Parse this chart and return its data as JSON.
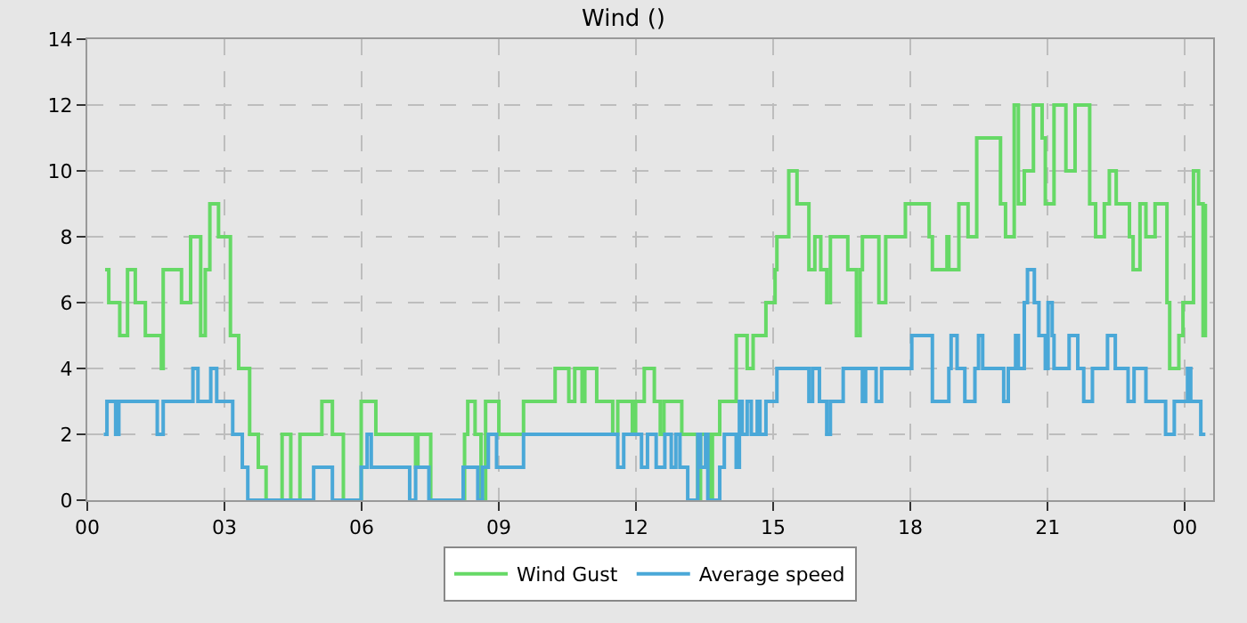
{
  "chart_data": {
    "type": "step",
    "title": "Wind ()",
    "xlim": [
      0,
      24.62
    ],
    "xticks": [
      {
        "value": 0,
        "label": "00"
      },
      {
        "value": 3,
        "label": "03"
      },
      {
        "value": 6,
        "label": "06"
      },
      {
        "value": 9,
        "label": "09"
      },
      {
        "value": 12,
        "label": "12"
      },
      {
        "value": 15,
        "label": "15"
      },
      {
        "value": 18,
        "label": "18"
      },
      {
        "value": 21,
        "label": "21"
      },
      {
        "value": 24,
        "label": "00"
      }
    ],
    "ylim": [
      0,
      14
    ],
    "yticks": [
      0,
      2,
      4,
      6,
      8,
      10,
      12,
      14
    ],
    "grid": true,
    "legend": "bottom",
    "line_style": "solid",
    "marker": "none",
    "series": [
      {
        "name": "Wind Gust",
        "color": "#66d966",
        "x": [
          0.39,
          0.47,
          0.71,
          0.88,
          1.05,
          1.27,
          1.62,
          1.66,
          2.06,
          2.26,
          2.48,
          2.58,
          2.68,
          2.87,
          3.13,
          3.31,
          3.55,
          3.74,
          3.91,
          4.26,
          4.45,
          4.65,
          5.13,
          5.36,
          5.6,
          5.99,
          6.31,
          7.18,
          7.23,
          7.51,
          8.25,
          8.32,
          8.48,
          8.61,
          8.71,
          9.0,
          9.54,
          10.23,
          10.53,
          10.66,
          10.82,
          10.88,
          11.14,
          11.49,
          11.6,
          11.92,
          11.99,
          12.18,
          12.4,
          12.53,
          12.61,
          13.0,
          13.35,
          13.41,
          13.61,
          13.67,
          13.83,
          14.19,
          14.43,
          14.56,
          14.84,
          15.04,
          15.08,
          15.34,
          15.52,
          15.78,
          15.91,
          16.04,
          16.17,
          16.25,
          16.63,
          16.82,
          16.9,
          16.95,
          17.31,
          17.46,
          17.89,
          18.38,
          18.41,
          18.48,
          18.8,
          18.84,
          19.06,
          19.26,
          19.45,
          19.97,
          20.08,
          20.27,
          20.36,
          20.49,
          20.69,
          20.88,
          20.95,
          21.14,
          21.4,
          21.6,
          21.92,
          22.05,
          22.24,
          22.35,
          22.5,
          22.79,
          22.87,
          23.02,
          23.15,
          23.35,
          23.61,
          23.67,
          23.87,
          23.96,
          24.19,
          24.3,
          24.4,
          24.45
        ],
        "values": [
          7,
          6,
          5,
          7,
          6,
          5,
          4,
          7,
          6,
          8,
          5,
          7,
          9,
          8,
          5,
          4,
          2,
          1,
          0,
          2,
          0,
          2,
          3,
          2,
          0,
          3,
          2,
          1,
          2,
          0,
          2,
          3,
          2,
          0,
          3,
          2,
          3,
          4,
          3,
          4,
          3,
          4,
          3,
          2,
          3,
          2,
          3,
          4,
          3,
          2,
          3,
          2,
          0,
          2,
          0,
          2,
          3,
          5,
          4,
          5,
          6,
          7,
          8,
          10,
          9,
          7,
          8,
          7,
          6,
          8,
          7,
          5,
          7,
          8,
          6,
          8,
          9,
          9,
          8,
          7,
          8,
          7,
          9,
          8,
          11,
          9,
          8,
          12,
          9,
          10,
          12,
          11,
          9,
          12,
          10,
          12,
          9,
          8,
          9,
          10,
          9,
          8,
          7,
          9,
          8,
          9,
          6,
          4,
          5,
          6,
          10,
          9,
          5,
          9
        ]
      },
      {
        "name": "Average speed",
        "color": "#4aa8d8",
        "x": [
          0.36,
          0.43,
          0.62,
          0.69,
          1.53,
          1.66,
          2.31,
          2.42,
          2.7,
          2.83,
          3.18,
          3.39,
          3.51,
          4.95,
          5.36,
          5.99,
          6.12,
          6.21,
          7.05,
          7.18,
          7.47,
          8.22,
          8.54,
          8.64,
          8.77,
          8.95,
          9.54,
          11.6,
          11.73,
          12.12,
          12.25,
          12.44,
          12.63,
          12.77,
          12.87,
          12.96,
          13.13,
          13.35,
          13.41,
          13.52,
          13.57,
          13.83,
          13.93,
          14.19,
          14.26,
          14.32,
          14.43,
          14.52,
          14.65,
          14.71,
          14.84,
          15.08,
          15.78,
          15.86,
          16.01,
          16.17,
          16.25,
          16.53,
          16.95,
          17.02,
          17.25,
          17.37,
          18.03,
          18.48,
          18.84,
          18.89,
          19.02,
          19.19,
          19.41,
          19.49,
          19.58,
          20.04,
          20.14,
          20.3,
          20.36,
          20.49,
          20.56,
          20.71,
          20.81,
          20.95,
          21.01,
          21.1,
          21.14,
          21.47,
          21.66,
          21.79,
          21.98,
          22.31,
          22.48,
          22.76,
          22.89,
          23.15,
          23.58,
          23.77,
          24.06,
          24.13,
          24.35,
          24.45
        ],
        "values": [
          2,
          3,
          2,
          3,
          2,
          3,
          4,
          3,
          4,
          3,
          2,
          1,
          0,
          1,
          0,
          1,
          2,
          1,
          0,
          1,
          0,
          1,
          0,
          1,
          2,
          1,
          2,
          1,
          2,
          1,
          2,
          1,
          2,
          1,
          2,
          1,
          0,
          2,
          1,
          2,
          0,
          1,
          2,
          1,
          3,
          2,
          3,
          2,
          3,
          2,
          3,
          4,
          3,
          4,
          3,
          2,
          3,
          4,
          3,
          4,
          3,
          4,
          5,
          3,
          4,
          5,
          4,
          3,
          4,
          5,
          4,
          3,
          4,
          5,
          4,
          6,
          7,
          6,
          5,
          4,
          6,
          5,
          4,
          5,
          4,
          3,
          4,
          5,
          4,
          3,
          4,
          3,
          2,
          3,
          4,
          3,
          2,
          2
        ]
      }
    ]
  }
}
